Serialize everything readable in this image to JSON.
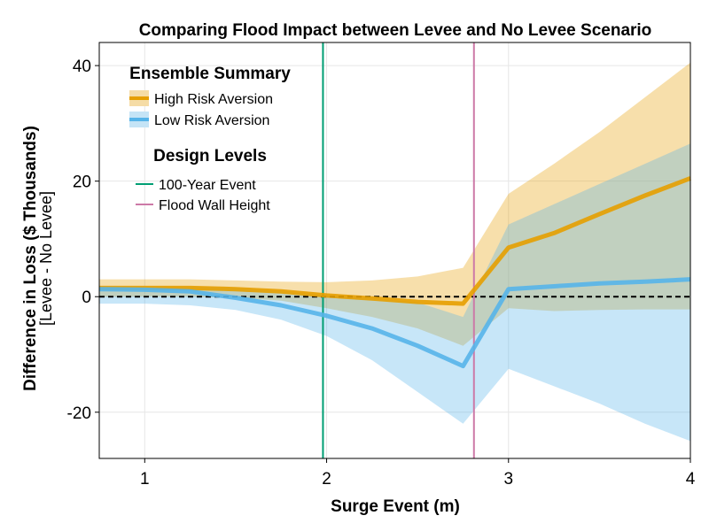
{
  "chart_data": {
    "type": "line",
    "title": "Comparing Flood Impact between Levee and No Levee Scenario",
    "xlabel": "Surge Event (m)",
    "ylabel": "Difference in Loss ($ Thousands)",
    "ylabel_sub": "[Levee - No Levee]",
    "xlim": [
      0.75,
      4.0
    ],
    "ylim": [
      -28,
      44
    ],
    "xticks": [
      1,
      2,
      3,
      4
    ],
    "yticks": [
      -20,
      0,
      20,
      40
    ],
    "xtick_labels": [
      "1",
      "2",
      "3",
      "4"
    ],
    "ytick_labels": [
      "-20",
      "0",
      "20",
      "40"
    ],
    "grid": true,
    "x": [
      0.75,
      1.0,
      1.25,
      1.5,
      1.75,
      2.0,
      2.25,
      2.5,
      2.75,
      3.0,
      3.25,
      3.5,
      3.75,
      4.0
    ],
    "series": [
      {
        "name": "High Risk Aversion",
        "color": "#E69F00",
        "band_color": "#F5DCA6",
        "mean": [
          1.5,
          1.5,
          1.5,
          1.3,
          0.9,
          0.2,
          -0.3,
          -0.9,
          -1.2,
          8.5,
          11.0,
          14.3,
          17.5,
          20.5
        ],
        "upper": [
          3.0,
          3.0,
          3.0,
          2.8,
          2.6,
          2.5,
          2.8,
          3.5,
          5.0,
          17.8,
          23.0,
          28.5,
          34.5,
          40.5
        ],
        "lower": [
          0.0,
          0.0,
          0.0,
          -0.2,
          -0.7,
          -2.0,
          -3.5,
          -5.5,
          -8.5,
          -2.0,
          -2.5,
          -2.3,
          -2.2,
          -2.2
        ]
      },
      {
        "name": "Low Risk Aversion",
        "color": "#56B4E9",
        "band_color": "#C5E4F6",
        "mean": [
          1.3,
          1.2,
          0.9,
          -0.2,
          -1.5,
          -3.3,
          -5.5,
          -8.5,
          -12.0,
          1.3,
          1.8,
          2.3,
          2.6,
          3.0
        ],
        "upper": [
          1.8,
          1.8,
          1.7,
          1.5,
          0.9,
          0.2,
          -0.3,
          -1.0,
          -3.5,
          12.5,
          16.0,
          19.5,
          23.0,
          26.5
        ],
        "lower": [
          -1.2,
          -1.2,
          -1.5,
          -2.3,
          -4.0,
          -6.8,
          -11.0,
          -16.5,
          -22.0,
          -12.5,
          -15.5,
          -18.5,
          -22.0,
          -25.0
        ]
      }
    ],
    "reference_line": {
      "y": 0,
      "style": "dashed",
      "color": "#000000"
    },
    "design_levels": [
      {
        "name": "100-Year Event",
        "x": 1.98,
        "color": "#009E73"
      },
      {
        "name": "Flood Wall Height",
        "x": 2.81,
        "color": "#CC79A7"
      }
    ],
    "legend": {
      "placement": "top-left",
      "summary_heading": "Ensemble Summary",
      "design_heading": "Design Levels"
    }
  }
}
